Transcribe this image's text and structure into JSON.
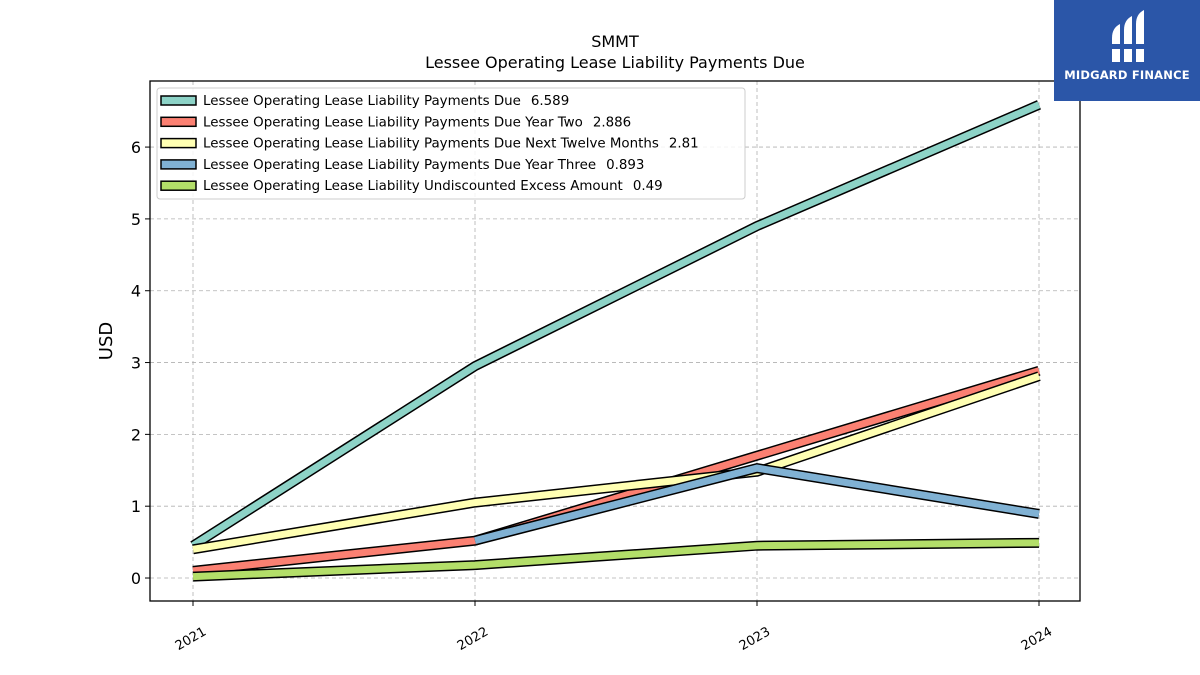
{
  "chart_data": {
    "type": "line",
    "title": "SMMT",
    "subtitle": "Lessee Operating Lease Liability Payments Due",
    "xlabel": "",
    "ylabel": "USD",
    "x": [
      "2021",
      "2022",
      "2023",
      "2024"
    ],
    "ylim": [
      -0.32,
      6.92
    ],
    "yticks": [
      0,
      1,
      2,
      3,
      4,
      5,
      6
    ],
    "grid": true,
    "legend_position": "top-left",
    "series": [
      {
        "name": "Lessee Operating Lease Liability Payments Due",
        "legend_value": "6.589",
        "color": "#8dd3c7",
        "values": [
          0.45,
          2.95,
          4.9,
          6.589
        ]
      },
      {
        "name": "Lessee Operating Lease Liability Payments Due Year Two",
        "legend_value": "2.886",
        "color": "#fb8072",
        "values": [
          0.1,
          0.52,
          null,
          2.886
        ]
      },
      {
        "name": "Lessee Operating Lease Liability Payments Due Next Twelve Months",
        "legend_value": "2.81",
        "color": "#ffffb3",
        "values": [
          0.4,
          1.05,
          1.48,
          2.81
        ]
      },
      {
        "name": "Lessee Operating Lease Liability Payments Due Year Three",
        "legend_value": "0.893",
        "color": "#80b1d3",
        "values": [
          null,
          0.52,
          1.53,
          0.893
        ]
      },
      {
        "name": "Lessee Operating Lease Liability Undiscounted Excess Amount",
        "legend_value": "0.49",
        "color": "#b3de69",
        "values": [
          0.02,
          0.18,
          0.45,
          0.49
        ]
      }
    ]
  },
  "logo": {
    "text": "MIDGARD FINANCE"
  }
}
